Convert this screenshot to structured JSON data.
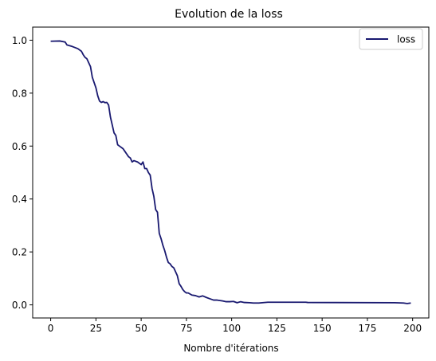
{
  "chart_data": {
    "type": "line",
    "title": "Evolution de la loss",
    "xlabel": "Nombre d'itérations",
    "ylabel": "",
    "xlim": [
      -9.95,
      208.95
    ],
    "ylim": [
      -0.0495,
      1.0495
    ],
    "xticks": [
      0,
      25,
      50,
      75,
      100,
      125,
      150,
      175,
      200
    ],
    "yticks": [
      0.0,
      0.2,
      0.4,
      0.6,
      0.8,
      1.0
    ],
    "xtick_labels": [
      "0",
      "25",
      "50",
      "75",
      "100",
      "125",
      "150",
      "175",
      "200"
    ],
    "ytick_labels": [
      "0.0",
      "0.2",
      "0.4",
      "0.6",
      "0.8",
      "1.0"
    ],
    "grid": false,
    "legend_position": "top-right",
    "series": [
      {
        "name": "loss",
        "color": "#191970",
        "x": [
          0,
          5,
          8,
          9,
          12,
          15,
          17,
          18,
          19,
          20,
          22,
          23,
          24,
          25,
          26,
          27,
          28,
          29,
          30,
          31,
          32,
          33,
          34,
          35,
          36,
          37,
          38,
          40,
          41,
          42,
          43,
          44,
          45,
          46,
          48,
          50,
          51,
          52,
          53,
          54,
          55,
          56,
          57,
          58,
          59,
          60,
          61,
          62,
          63,
          64,
          65,
          66,
          67,
          68,
          69,
          70,
          71,
          72,
          73,
          74,
          75,
          76,
          78,
          80,
          82,
          84,
          86,
          88,
          90,
          92,
          95,
          97,
          99,
          101,
          103,
          105,
          107,
          110,
          112,
          115,
          120,
          125,
          141,
          142,
          190,
          195,
          197,
          199
        ],
        "y": [
          0.996,
          0.997,
          0.993,
          0.982,
          0.976,
          0.968,
          0.958,
          0.945,
          0.935,
          0.93,
          0.9,
          0.86,
          0.84,
          0.82,
          0.79,
          0.77,
          0.765,
          0.768,
          0.764,
          0.765,
          0.755,
          0.71,
          0.68,
          0.65,
          0.64,
          0.605,
          0.6,
          0.59,
          0.58,
          0.57,
          0.56,
          0.555,
          0.54,
          0.545,
          0.54,
          0.53,
          0.54,
          0.515,
          0.515,
          0.5,
          0.49,
          0.44,
          0.41,
          0.36,
          0.35,
          0.27,
          0.25,
          0.225,
          0.205,
          0.18,
          0.16,
          0.155,
          0.145,
          0.14,
          0.125,
          0.11,
          0.08,
          0.07,
          0.058,
          0.05,
          0.045,
          0.045,
          0.037,
          0.035,
          0.03,
          0.034,
          0.028,
          0.023,
          0.018,
          0.018,
          0.015,
          0.012,
          0.012,
          0.013,
          0.008,
          0.012,
          0.009,
          0.008,
          0.007,
          0.007,
          0.01,
          0.01,
          0.01,
          0.009,
          0.008,
          0.007,
          0.005,
          0.007
        ]
      }
    ]
  }
}
